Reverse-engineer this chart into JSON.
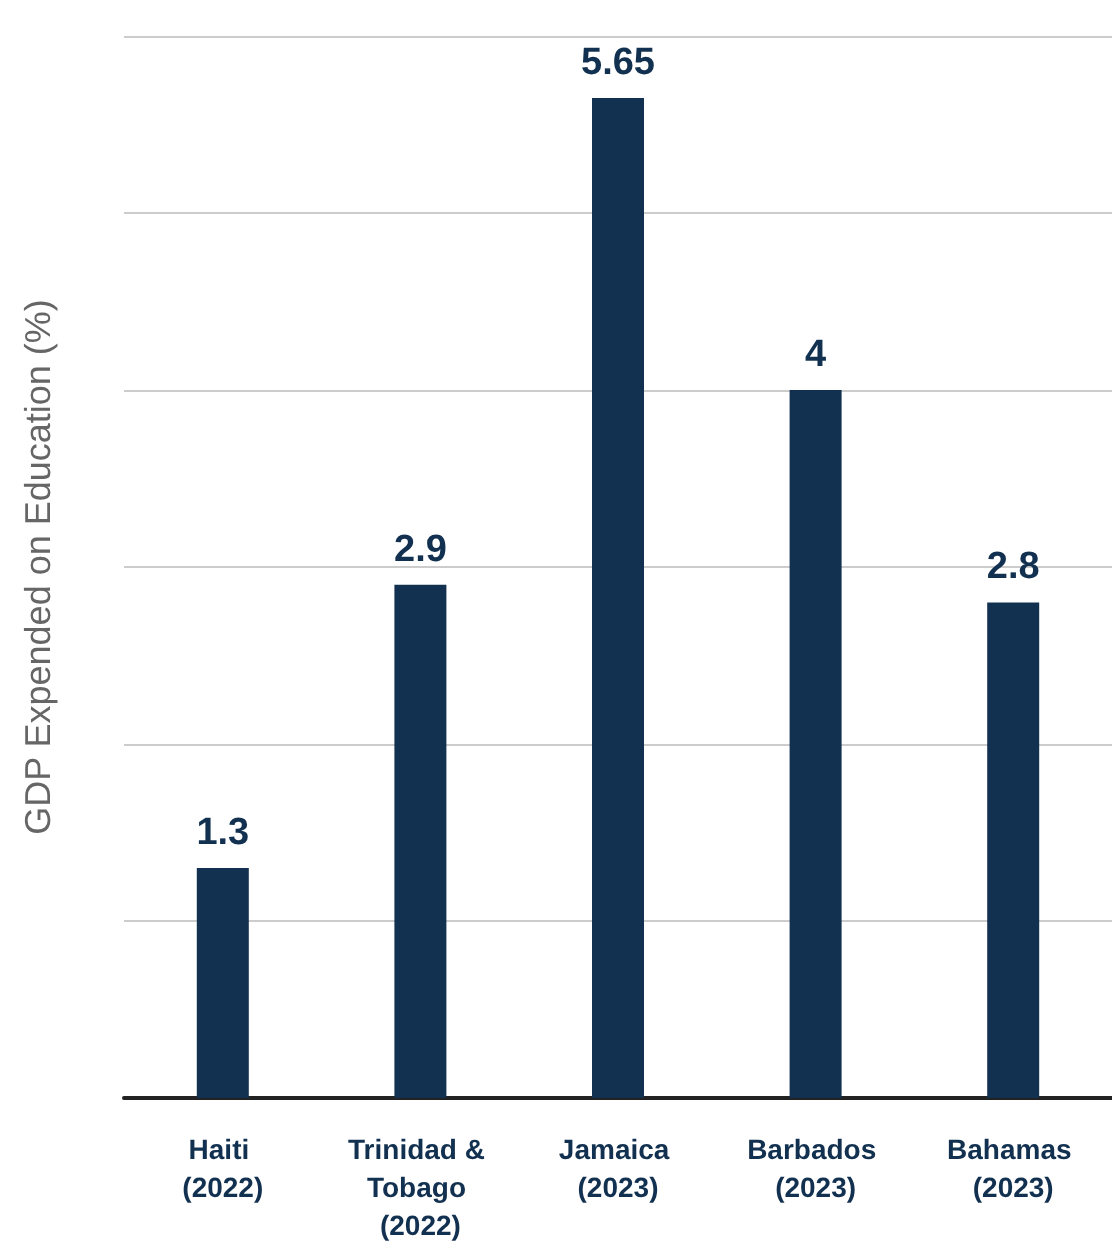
{
  "chart_data": {
    "type": "bar",
    "ylabel": "GDP Expended on Education (%)",
    "categories": [
      "Haiti (2022)",
      "Trinidad & Tobago (2022)",
      "Jamaica (2023)",
      "Barbados (2023)",
      "Bahamas (2023)"
    ],
    "values": [
      1.3,
      2.9,
      5.65,
      4,
      2.8
    ],
    "color": "#12304f",
    "ylim": [
      0,
      6
    ],
    "yticks": [
      {
        "value": 0,
        "label": null
      },
      {
        "value": 1,
        "label": null
      },
      {
        "value": 2,
        "label": null
      },
      {
        "value": 3,
        "label": null
      },
      {
        "value": 4,
        "label": null
      },
      {
        "value": 5,
        "label": null
      },
      {
        "value": 6,
        "label": null
      }
    ],
    "grid": "y",
    "tick_labels": "x",
    "data_labels": true
  }
}
